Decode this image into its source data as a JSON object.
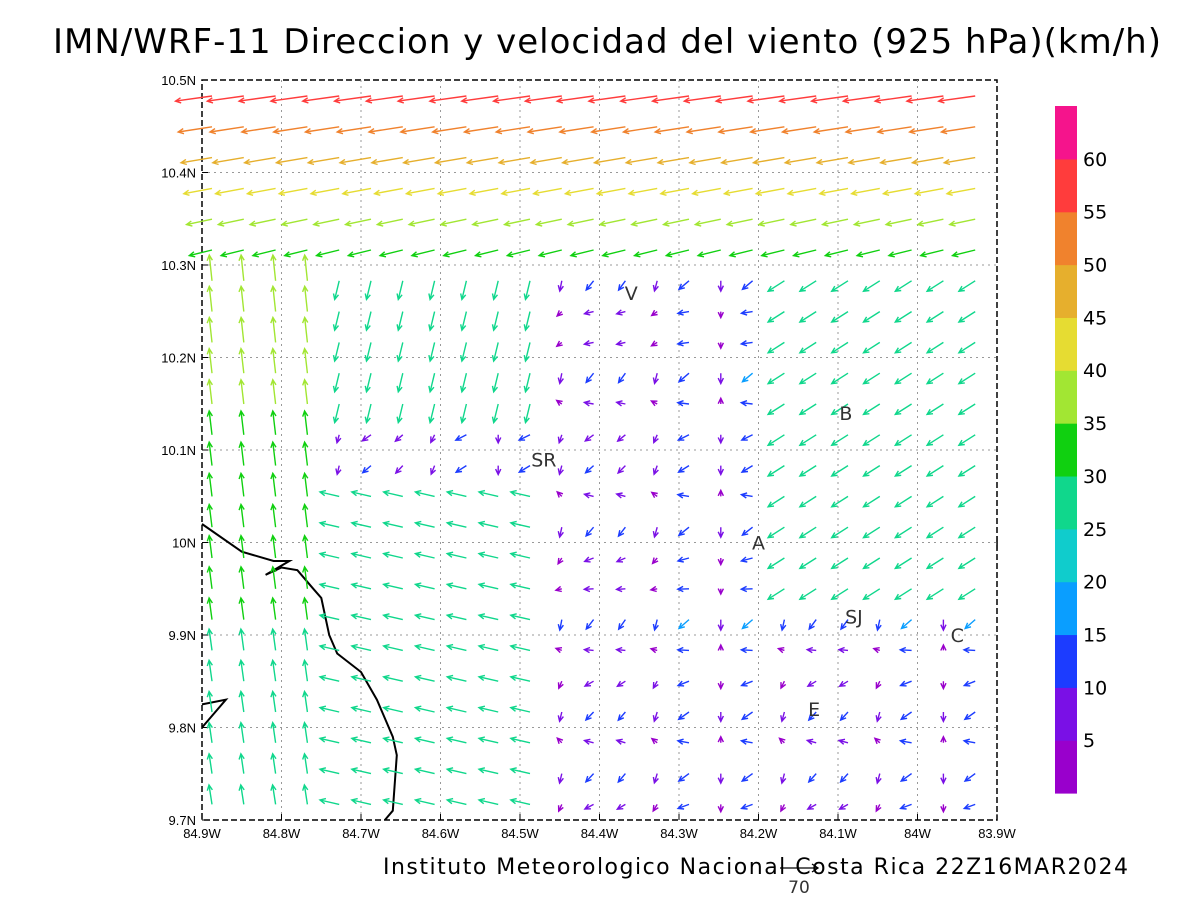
{
  "title": "IMN/WRF-11 Direccion y velocidad del viento (925 hPa)(km/h)",
  "footer": "Instituto Meteorologico Nacional Costa Rica 22Z16MAR2024",
  "reference_vector_label": "70",
  "chart_data": {
    "type": "vector-field",
    "variable": "wind direction and speed",
    "level": "925 hPa",
    "units": "km/h",
    "valid_time": "22Z16MAR2024",
    "x_range": [
      -84.9,
      -83.9
    ],
    "y_range": [
      9.7,
      10.5
    ],
    "x_ticks": [
      "84.9W",
      "84.8W",
      "84.7W",
      "84.6W",
      "84.5W",
      "84.4W",
      "84.3W",
      "84.2W",
      "84.1W",
      "84W",
      "83.9W"
    ],
    "y_ticks": [
      "9.7N",
      "9.8N",
      "9.9N",
      "10N",
      "10.1N",
      "10.2N",
      "10.3N",
      "10.4N",
      "10.5N"
    ],
    "grid": true,
    "colorbar": {
      "labels": [
        "5",
        "10",
        "15",
        "20",
        "25",
        "30",
        "35",
        "40",
        "45",
        "50",
        "55",
        "60"
      ],
      "colors": [
        "#9900cc",
        "#7a10e6",
        "#1c3cff",
        "#0a9eff",
        "#10cccc",
        "#10d78c",
        "#10d010",
        "#a2e633",
        "#e6dc32",
        "#e6af2d",
        "#f0822d",
        "#ff3c3c",
        "#f5148c"
      ],
      "range": [
        0,
        65
      ]
    },
    "stations": [
      {
        "label": "V",
        "lon": -84.36,
        "lat": 10.27
      },
      {
        "label": "SR",
        "lon": -84.47,
        "lat": 10.09
      },
      {
        "label": "B",
        "lon": -84.09,
        "lat": 10.14
      },
      {
        "label": "A",
        "lon": -84.2,
        "lat": 10.0
      },
      {
        "label": "I",
        "lon": -83.9,
        "lat": 10.0
      },
      {
        "label": "SJ",
        "lon": -84.08,
        "lat": 9.92
      },
      {
        "label": "C",
        "lon": -83.95,
        "lat": 9.9
      },
      {
        "label": "E",
        "lon": -84.13,
        "lat": 9.82
      }
    ],
    "coastline": [
      [
        [
          -84.9,
          10.02
        ],
        [
          -84.85,
          9.99
        ],
        [
          -84.81,
          9.98
        ],
        [
          -84.79,
          9.98
        ],
        [
          -84.82,
          9.965
        ],
        [
          -84.8,
          9.973
        ],
        [
          -84.78,
          9.97
        ],
        [
          -84.76,
          9.95
        ],
        [
          -84.75,
          9.94
        ],
        [
          -84.74,
          9.9
        ],
        [
          -84.73,
          9.88
        ],
        [
          -84.7,
          9.86
        ],
        [
          -84.68,
          9.83
        ],
        [
          -84.66,
          9.79
        ],
        [
          -84.655,
          9.77
        ],
        [
          -84.66,
          9.71
        ],
        [
          -84.67,
          9.7
        ]
      ],
      [
        [
          -84.9,
          9.825
        ],
        [
          -84.87,
          9.83
        ],
        [
          -84.9,
          9.8
        ]
      ]
    ]
  }
}
